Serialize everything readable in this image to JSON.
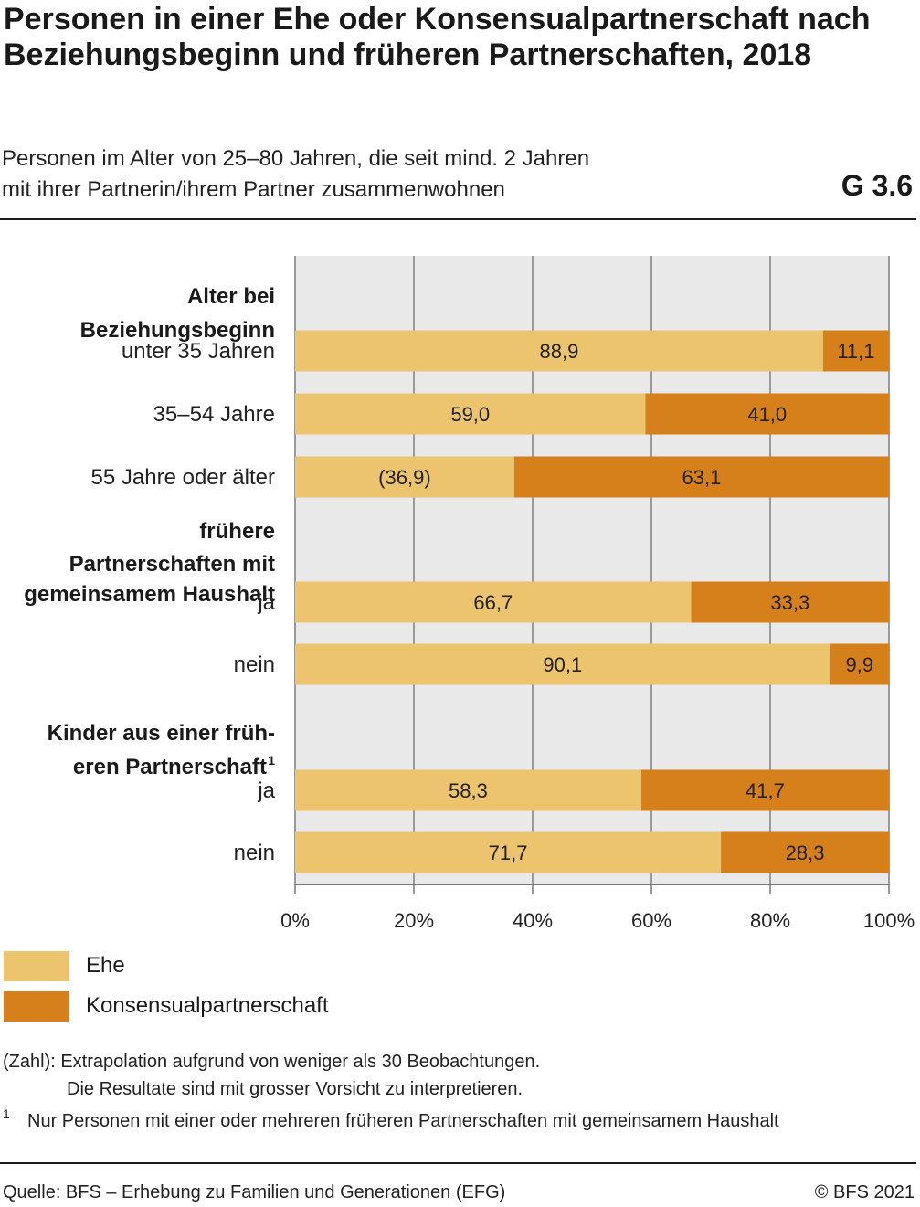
{
  "header": {
    "title": "Personen in einer Ehe oder Konsensualpartnerschaft nach Beziehungsbeginn und früheren Partnerschaften, 2018",
    "subtitle_line1": "Personen im Alter von 25–80 Jahren, die seit mind. 2 Jahren",
    "subtitle_line2": "mit ihrer Partnerin/ihrem Partner zusammenwohnen",
    "code": "G 3.6"
  },
  "colors": {
    "ehe": "#ecc46e",
    "konsensual": "#d5801b",
    "plot_bg": "#e9e9e9",
    "grid": "#9a9a9a"
  },
  "chart_data": {
    "type": "bar",
    "orientation": "horizontal",
    "stacked": true,
    "x_range": [
      0,
      100
    ],
    "x_ticks": [
      "0%",
      "20%",
      "40%",
      "60%",
      "80%",
      "100%"
    ],
    "grid": true,
    "legend_position": "bottom-left",
    "groups": [
      {
        "heading": [
          "Alter bei",
          "Beziehungsbeginn"
        ],
        "superscript": "",
        "categories": [
          {
            "label": "unter 35 Jahren",
            "ehe": 88.9,
            "konsensual": 11.1,
            "ehe_label": "88,9",
            "konsensual_label": "11,1"
          },
          {
            "label": "35–54 Jahre",
            "ehe": 59.0,
            "konsensual": 41.0,
            "ehe_label": "59,0",
            "konsensual_label": "41,0"
          },
          {
            "label": "55 Jahre oder älter",
            "ehe": 36.9,
            "konsensual": 63.1,
            "ehe_label": "(36,9)",
            "konsensual_label": "63,1"
          }
        ]
      },
      {
        "heading": [
          "frühere",
          "Partnerschaften mit",
          "gemeinsamem Haushalt"
        ],
        "superscript": "",
        "categories": [
          {
            "label": "ja",
            "ehe": 66.7,
            "konsensual": 33.3,
            "ehe_label": "66,7",
            "konsensual_label": "33,3"
          },
          {
            "label": "nein",
            "ehe": 90.1,
            "konsensual": 9.9,
            "ehe_label": "90,1",
            "konsensual_label": "9,9"
          }
        ]
      },
      {
        "heading": [
          "Kinder aus einer früh-",
          "eren Partnerschaft"
        ],
        "superscript": "1",
        "categories": [
          {
            "label": "ja",
            "ehe": 58.3,
            "konsensual": 41.7,
            "ehe_label": "58,3",
            "konsensual_label": "41,7"
          },
          {
            "label": "nein",
            "ehe": 71.7,
            "konsensual": 28.3,
            "ehe_label": "71,7",
            "konsensual_label": "28,3"
          }
        ]
      }
    ],
    "series": [
      {
        "key": "ehe",
        "name": "Ehe"
      },
      {
        "key": "konsensual",
        "name": "Konsensualpartnerschaft"
      }
    ]
  },
  "notes": {
    "zahl_line1": "(Zahl): Extrapolation aufgrund von weniger als 30 Beobachtungen.",
    "zahl_line2": "Die Resultate sind mit grosser Vorsicht zu interpretieren.",
    "footnote_mark": "1",
    "footnote_text": "Nur Personen mit einer oder mehreren früheren Partnerschaften mit gemeinsamem Haushalt"
  },
  "footer": {
    "source": "Quelle: BFS – Erhebung zu Familien und Generationen (EFG)",
    "copyright": "© BFS 2021"
  }
}
